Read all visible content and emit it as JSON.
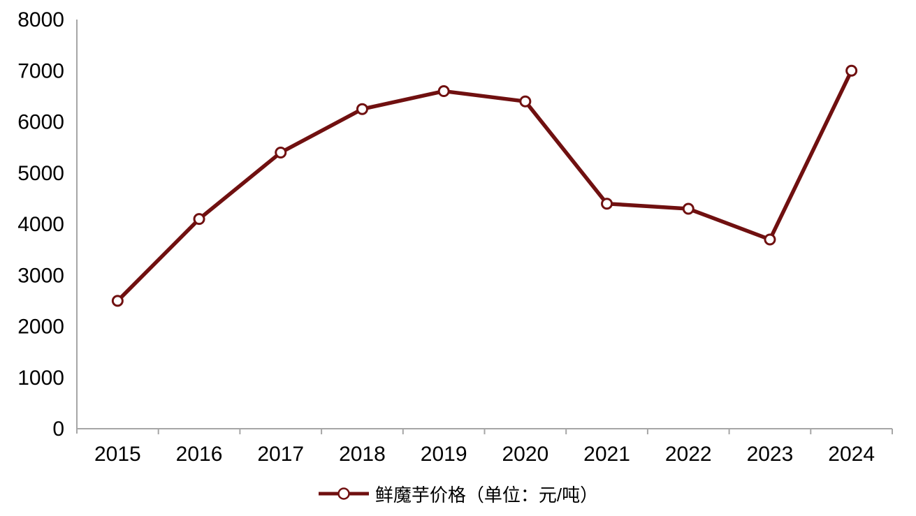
{
  "chart_data": {
    "type": "line",
    "title": "",
    "xlabel": "",
    "ylabel": "",
    "categories": [
      "2015",
      "2016",
      "2017",
      "2018",
      "2019",
      "2020",
      "2021",
      "2022",
      "2023",
      "2024"
    ],
    "series": [
      {
        "name": "鲜魔芋价格（单位：元/吨）",
        "values": [
          2500,
          4100,
          5400,
          6250,
          6600,
          6400,
          4400,
          4300,
          3700,
          7000
        ]
      }
    ],
    "ylim": [
      0,
      8000
    ],
    "yticks": [
      "0",
      "1000",
      "2000",
      "3000",
      "4000",
      "5000",
      "6000",
      "7000",
      "8000"
    ],
    "grid": false,
    "legend_position": "bottom",
    "marker": "circle-open",
    "colors": {
      "line": "#701010",
      "marker_fill": "#ffffff",
      "marker_stroke": "#701010",
      "axis": "#a6a6a6",
      "tick_text": "#000000"
    }
  },
  "legend": {
    "marker_icon": "line-with-circle-marker"
  }
}
